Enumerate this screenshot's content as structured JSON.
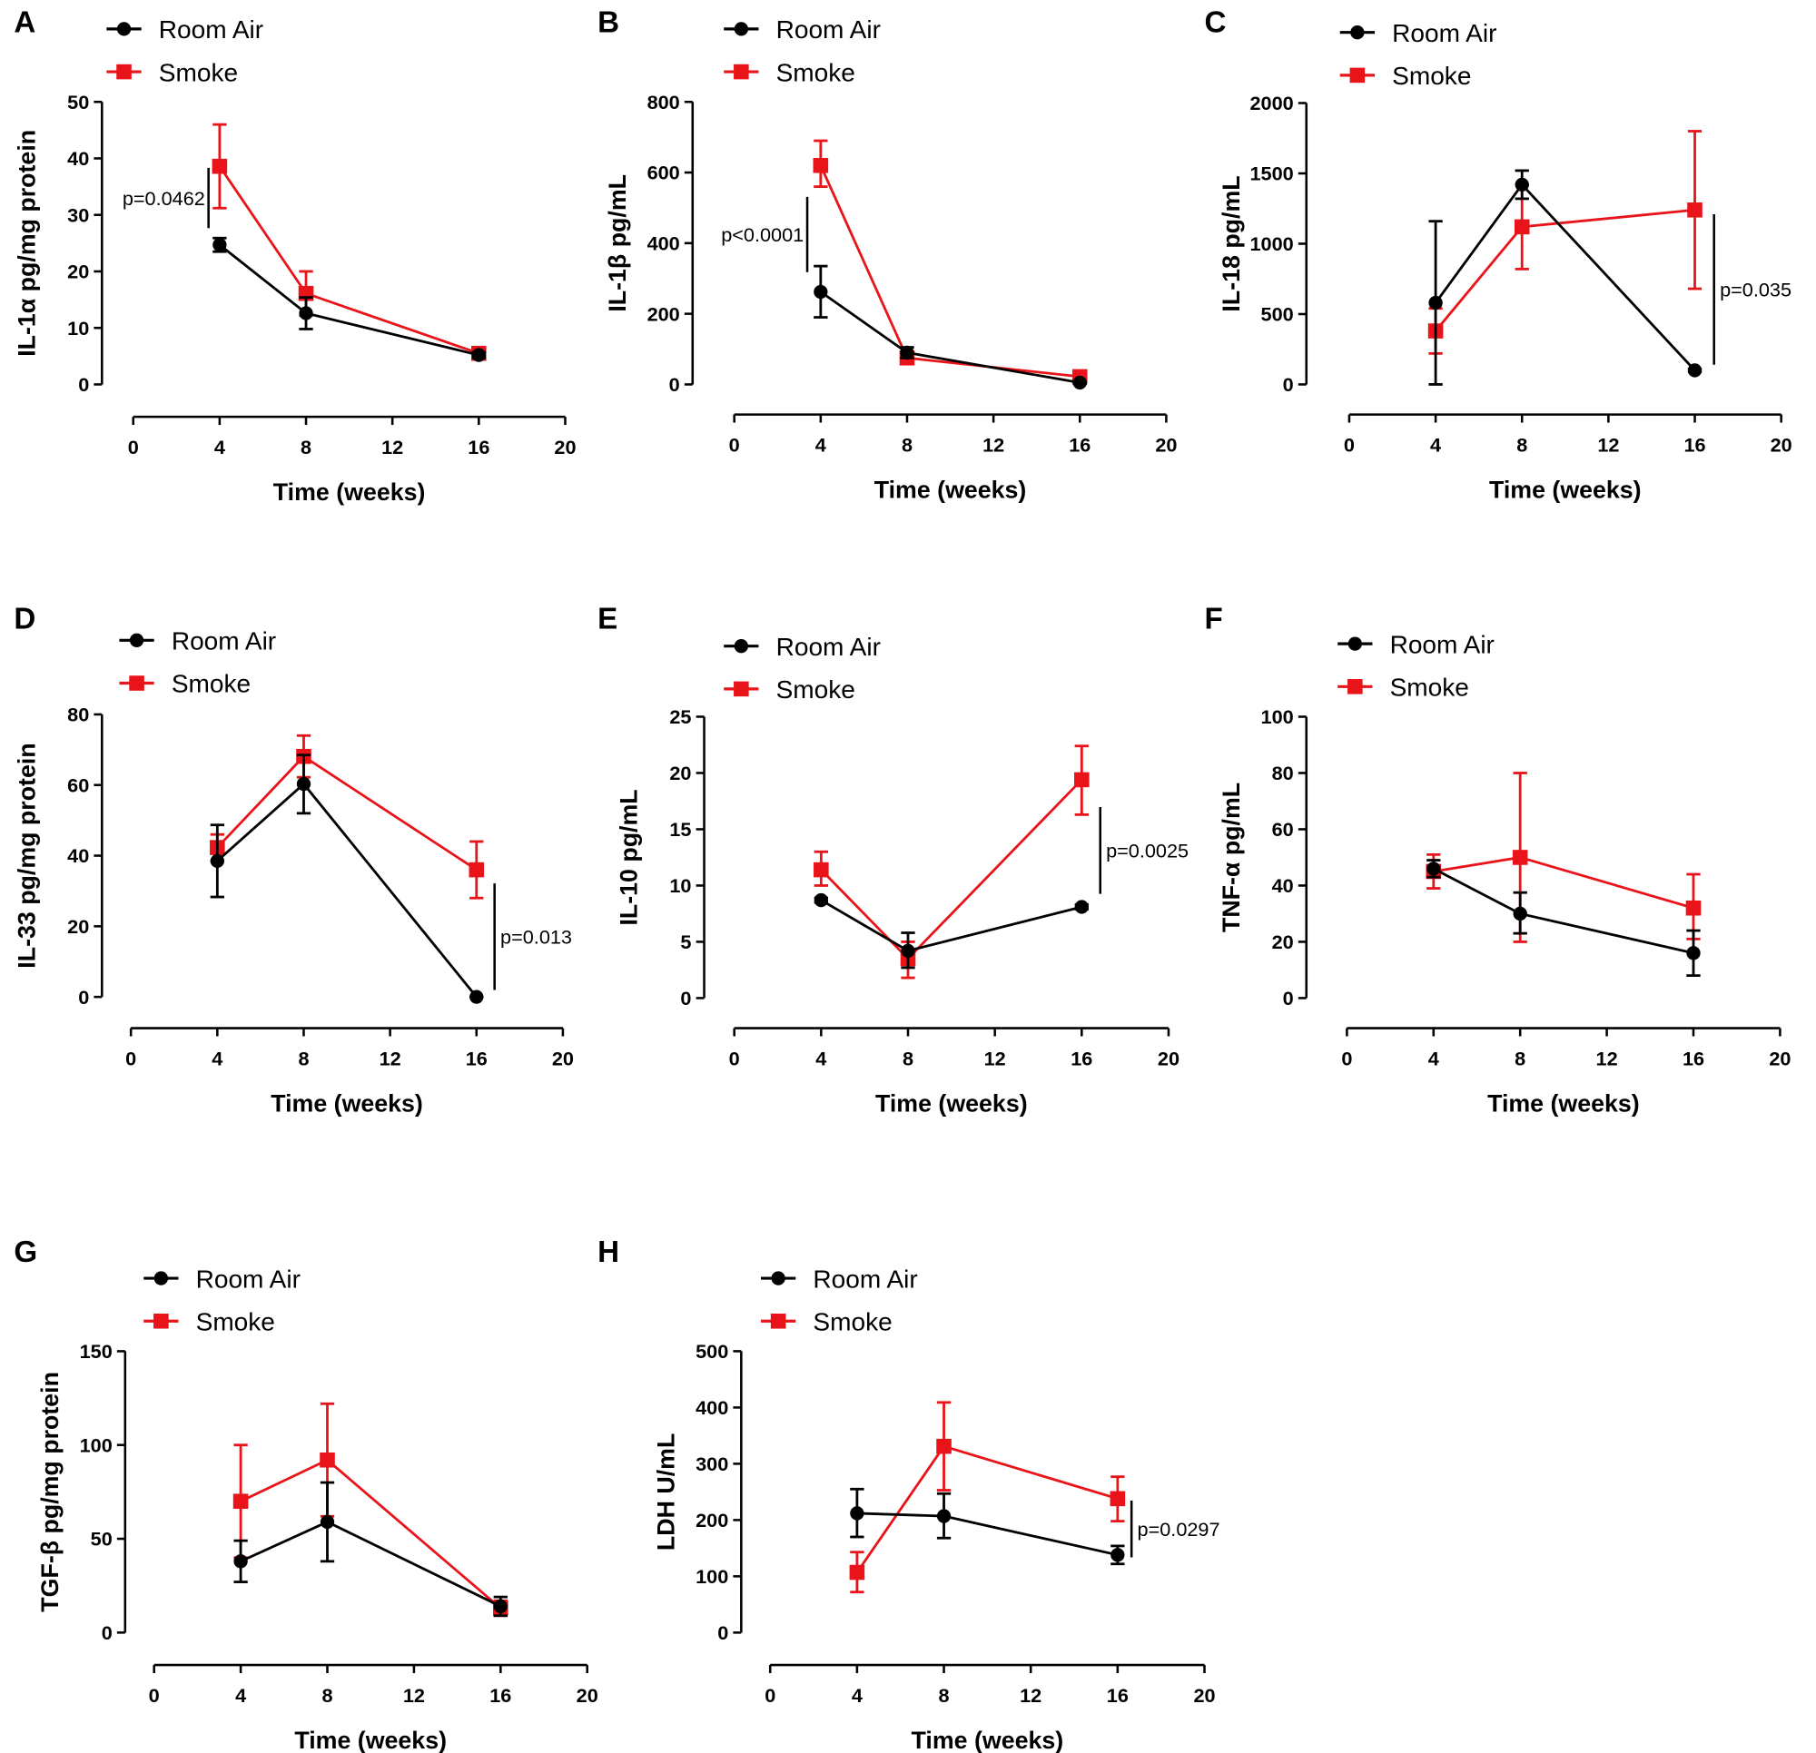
{
  "chart_data": [
    {
      "panel": "A",
      "type": "line",
      "ylabel": "IL-1α pg/mg protein",
      "xlabel": "Time (weeks)",
      "xlim": [
        0,
        20
      ],
      "ylim": [
        0,
        50
      ],
      "xticks": [
        0,
        4,
        8,
        12,
        16,
        20
      ],
      "yticks": [
        0,
        10,
        20,
        30,
        40,
        50
      ],
      "x": [
        4,
        8,
        16
      ],
      "series": [
        {
          "name": "Room Air",
          "color": "#000000",
          "marker": "circle",
          "values": [
            24.7,
            12.6,
            5.2
          ],
          "err_low": [
            23.5,
            9.8,
            4.7
          ],
          "err_high": [
            25.9,
            15.4,
            5.7
          ]
        },
        {
          "name": "Smoke",
          "color": "#e8141a",
          "marker": "square",
          "values": [
            38.6,
            16.1,
            5.5
          ],
          "err_low": [
            31.2,
            12.2,
            4.6
          ],
          "err_high": [
            46,
            20,
            6.4
          ]
        }
      ],
      "annotation": "p=0.0462"
    },
    {
      "panel": "B",
      "type": "line",
      "ylabel": "IL-1β pg/mL",
      "xlabel": "Time (weeks)",
      "xlim": [
        0,
        20
      ],
      "ylim": [
        0,
        800
      ],
      "xticks": [
        0,
        4,
        8,
        12,
        16,
        20
      ],
      "yticks": [
        0,
        200,
        400,
        600,
        800
      ],
      "x": [
        4,
        8,
        16
      ],
      "series": [
        {
          "name": "Room Air",
          "color": "#000000",
          "marker": "circle",
          "values": [
            262,
            90,
            5
          ],
          "err_low": [
            190,
            75,
            2
          ],
          "err_high": [
            335,
            105,
            8
          ]
        },
        {
          "name": "Smoke",
          "color": "#e8141a",
          "marker": "square",
          "values": [
            620,
            75,
            22
          ],
          "err_low": [
            560,
            60,
            17
          ],
          "err_high": [
            690,
            90,
            27
          ]
        }
      ],
      "annotation": "p<0.0001"
    },
    {
      "panel": "C",
      "type": "line",
      "ylabel": "IL-18 pg/mL",
      "xlabel": "Time (weeks)",
      "xlim": [
        0,
        20
      ],
      "ylim": [
        0,
        2000
      ],
      "xticks": [
        0,
        4,
        8,
        12,
        16,
        20
      ],
      "yticks": [
        0,
        500,
        1000,
        1500,
        2000
      ],
      "x": [
        4,
        8,
        16
      ],
      "series": [
        {
          "name": "Room Air",
          "color": "#000000",
          "marker": "circle",
          "values": [
            580,
            1420,
            100
          ],
          "err_low": [
            0,
            1320,
            90
          ],
          "err_high": [
            1160,
            1520,
            110
          ]
        },
        {
          "name": "Smoke",
          "color": "#e8141a",
          "marker": "square",
          "values": [
            380,
            1120,
            1240
          ],
          "err_low": [
            220,
            820,
            680
          ],
          "err_high": [
            540,
            1420,
            1800
          ]
        }
      ],
      "annotation": "p=0.035"
    },
    {
      "panel": "D",
      "type": "line",
      "ylabel": "IL-33 pg/mg protein",
      "xlabel": "Time (weeks)",
      "xlim": [
        0,
        20
      ],
      "ylim": [
        0,
        80
      ],
      "xticks": [
        0,
        4,
        8,
        12,
        16,
        20
      ],
      "yticks": [
        0,
        20,
        40,
        60,
        80
      ],
      "x": [
        4,
        8,
        16
      ],
      "series": [
        {
          "name": "Room Air",
          "color": "#000000",
          "marker": "circle",
          "values": [
            38.5,
            60.3,
            0
          ],
          "err_low": [
            28.3,
            52,
            0
          ],
          "err_high": [
            48.7,
            68.5,
            0
          ]
        },
        {
          "name": "Smoke",
          "color": "#e8141a",
          "marker": "square",
          "values": [
            42.3,
            68.1,
            36
          ],
          "err_low": [
            38.5,
            62.2,
            28
          ],
          "err_high": [
            46,
            74,
            44
          ]
        }
      ],
      "annotation": "p=0.013"
    },
    {
      "panel": "E",
      "type": "line",
      "ylabel": "IL-10 pg/mL",
      "xlabel": "Time (weeks)",
      "xlim": [
        0,
        20
      ],
      "ylim": [
        0,
        25
      ],
      "xticks": [
        0,
        4,
        8,
        12,
        16,
        20
      ],
      "yticks": [
        0,
        5,
        10,
        15,
        20,
        25
      ],
      "x": [
        4,
        8,
        16
      ],
      "series": [
        {
          "name": "Room Air",
          "color": "#000000",
          "marker": "circle",
          "values": [
            8.7,
            4.2,
            8.1
          ],
          "err_low": [
            8.5,
            2.7,
            7.9
          ],
          "err_high": [
            8.9,
            5.8,
            8.3
          ]
        },
        {
          "name": "Smoke",
          "color": "#e8141a",
          "marker": "square",
          "values": [
            11.4,
            3.5,
            19.4
          ],
          "err_low": [
            10,
            1.8,
            16.3
          ],
          "err_high": [
            13,
            5,
            22.4
          ]
        }
      ],
      "annotation": "p=0.0025"
    },
    {
      "panel": "F",
      "type": "line",
      "ylabel": "TNF-α pg/mL",
      "xlabel": "Time (weeks)",
      "xlim": [
        0,
        20
      ],
      "ylim": [
        0,
        100
      ],
      "xticks": [
        0,
        4,
        8,
        12,
        16,
        20
      ],
      "yticks": [
        0,
        20,
        40,
        60,
        80,
        100
      ],
      "x": [
        4,
        8,
        16
      ],
      "series": [
        {
          "name": "Room Air",
          "color": "#000000",
          "marker": "circle",
          "values": [
            46,
            30,
            16
          ],
          "err_low": [
            43,
            23,
            8
          ],
          "err_high": [
            49,
            37.5,
            24
          ]
        },
        {
          "name": "Smoke",
          "color": "#e8141a",
          "marker": "square",
          "values": [
            45,
            50,
            32
          ],
          "err_low": [
            39,
            20,
            21
          ],
          "err_high": [
            51,
            80,
            44
          ]
        }
      ],
      "annotation": ""
    },
    {
      "panel": "G",
      "type": "line",
      "ylabel": "TGF-β pg/mg protein",
      "xlabel": "Time (weeks)",
      "xlim": [
        0,
        20
      ],
      "ylim": [
        0,
        150
      ],
      "xticks": [
        0,
        4,
        8,
        12,
        16,
        20
      ],
      "yticks": [
        0,
        50,
        100,
        150
      ],
      "x": [
        4,
        8,
        16
      ],
      "series": [
        {
          "name": "Room Air",
          "color": "#000000",
          "marker": "circle",
          "values": [
            38,
            59,
            14
          ],
          "err_low": [
            27,
            38,
            9
          ],
          "err_high": [
            49,
            80,
            19
          ]
        },
        {
          "name": "Smoke",
          "color": "#e8141a",
          "marker": "square",
          "values": [
            70,
            92,
            13
          ],
          "err_low": [
            40,
            62,
            9
          ],
          "err_high": [
            100,
            122,
            17
          ]
        }
      ],
      "annotation": ""
    },
    {
      "panel": "H",
      "type": "line",
      "ylabel": "LDH U/mL",
      "xlabel": "Time (weeks)",
      "xlim": [
        0,
        20
      ],
      "ylim": [
        0,
        500
      ],
      "xticks": [
        0,
        4,
        8,
        12,
        16,
        20
      ],
      "yticks": [
        0,
        100,
        200,
        300,
        400,
        500
      ],
      "x": [
        4,
        8,
        16
      ],
      "series": [
        {
          "name": "Room Air",
          "color": "#000000",
          "marker": "circle",
          "values": [
            212,
            207,
            138
          ],
          "err_low": [
            170,
            168,
            122
          ],
          "err_high": [
            255,
            247,
            154
          ]
        },
        {
          "name": "Smoke",
          "color": "#e8141a",
          "marker": "square",
          "values": [
            107,
            331,
            238
          ],
          "err_low": [
            72,
            253,
            198
          ],
          "err_high": [
            143,
            409,
            277
          ]
        }
      ],
      "annotation": "p=0.0297"
    }
  ]
}
